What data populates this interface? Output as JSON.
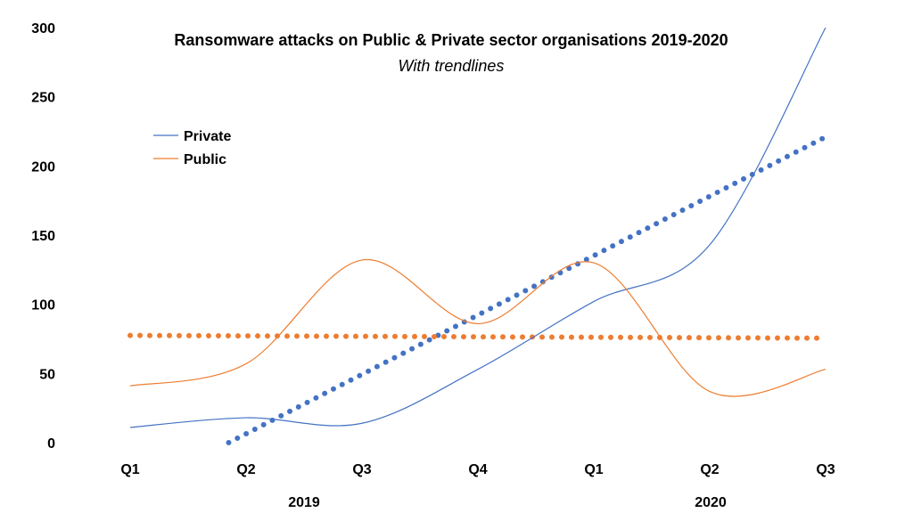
{
  "chart_data": {
    "type": "line",
    "title": "Ransomware attacks on Public & Private sector organisations 2019-2020",
    "subtitle": "With trendlines",
    "categories": [
      "Q1",
      "Q2",
      "Q3",
      "Q4",
      "Q1",
      "Q2",
      "Q3"
    ],
    "year_groups": [
      {
        "label": "2019",
        "categories": [
          "Q1",
          "Q2",
          "Q3",
          "Q4"
        ]
      },
      {
        "label": "2020",
        "categories": [
          "Q1",
          "Q2",
          "Q3"
        ]
      }
    ],
    "y_ticks": [
      "0",
      "50",
      "100",
      "150",
      "200",
      "250",
      "300"
    ],
    "ylim": [
      0,
      300
    ],
    "series": [
      {
        "name": "Private",
        "values": [
          11,
          18,
          14,
          53,
          102,
          143,
          300
        ],
        "color": "#4472C4"
      },
      {
        "name": "Public",
        "values": [
          41,
          57,
          132,
          86,
          130,
          37,
          53
        ],
        "color": "#ED7D31"
      }
    ],
    "trendlines": [
      {
        "series": "Private",
        "style": "dotted",
        "color": "#4472C4",
        "start": 0,
        "end": 221,
        "from_index": 0.85
      },
      {
        "series": "Public",
        "style": "dotted",
        "color": "#ED7D31",
        "start": 77.5,
        "end": 75.5
      }
    ],
    "legend": {
      "position": "top-left",
      "entries": [
        "Private",
        "Public"
      ]
    },
    "grid": false
  }
}
